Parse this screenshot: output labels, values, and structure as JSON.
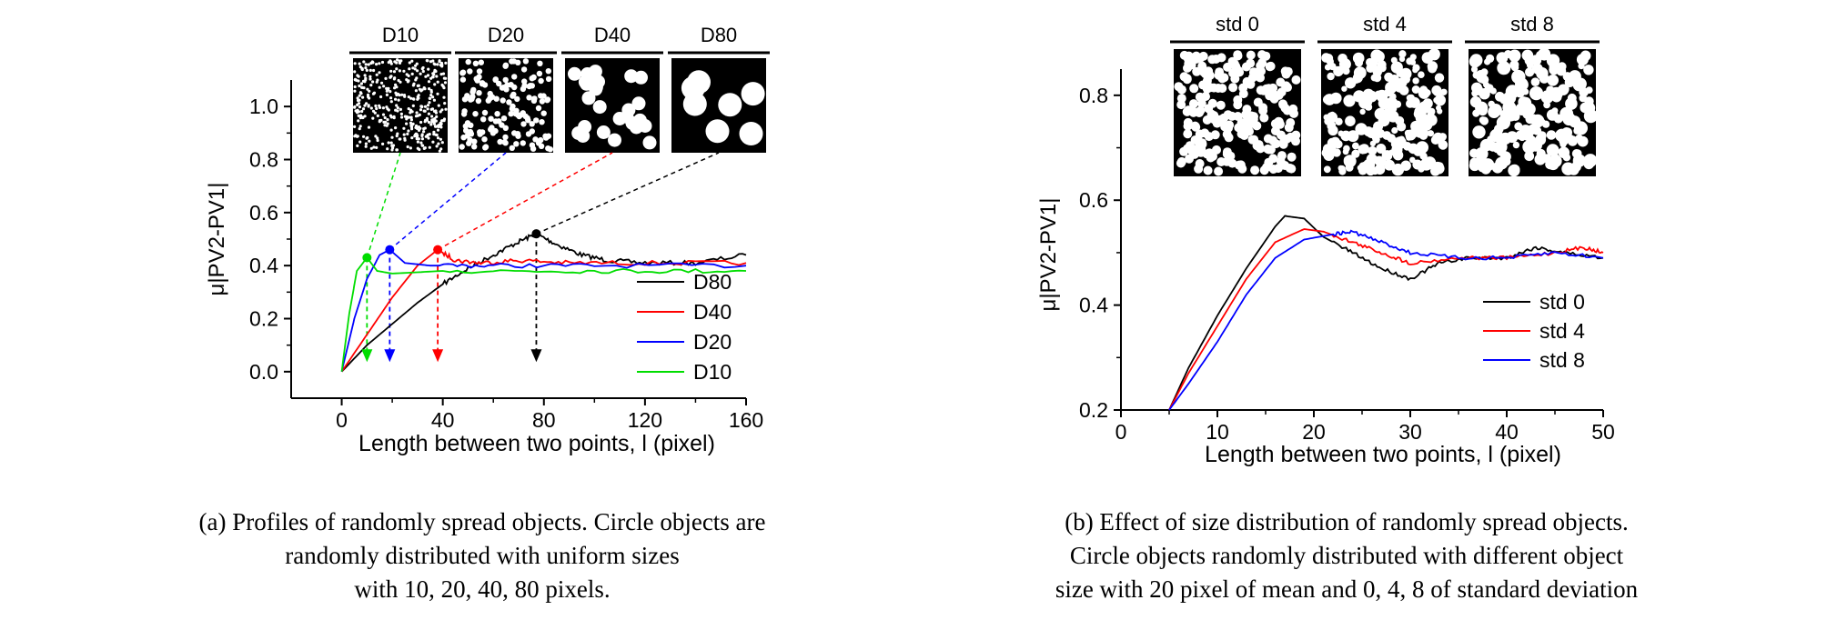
{
  "chart_data": [
    {
      "type": "line",
      "xlabel": "Length between two points, l (pixel)",
      "ylabel": "μ|PV2-PV1|",
      "xlim": [
        -20,
        160
      ],
      "ylim": [
        -0.1,
        1.1
      ],
      "xticks": [
        0,
        40,
        80,
        120,
        160
      ],
      "yticks": [
        0.0,
        0.2,
        0.4,
        0.6,
        0.8,
        1.0
      ],
      "legend_position": "bottom-right",
      "inset_labels": [
        "D10",
        "D20",
        "D40",
        "D80"
      ],
      "series": [
        {
          "name": "D80",
          "color": "#000000",
          "x": [
            0,
            10,
            20,
            30,
            40,
            50,
            60,
            70,
            77,
            85,
            95,
            105,
            120,
            140,
            160
          ],
          "y": [
            0.0,
            0.1,
            0.18,
            0.26,
            0.33,
            0.39,
            0.44,
            0.49,
            0.52,
            0.48,
            0.44,
            0.42,
            0.41,
            0.41,
            0.44
          ],
          "peak": [
            77,
            0.52
          ]
        },
        {
          "name": "D40",
          "color": "#ff0000",
          "x": [
            0,
            10,
            20,
            30,
            38,
            45,
            55,
            70,
            90,
            120,
            160
          ],
          "y": [
            0.0,
            0.14,
            0.28,
            0.4,
            0.46,
            0.42,
            0.41,
            0.42,
            0.41,
            0.41,
            0.41
          ],
          "peak": [
            38,
            0.46
          ]
        },
        {
          "name": "D20",
          "color": "#0000ff",
          "x": [
            0,
            5,
            10,
            15,
            19,
            25,
            35,
            60,
            100,
            160
          ],
          "y": [
            0.0,
            0.2,
            0.35,
            0.44,
            0.46,
            0.41,
            0.4,
            0.4,
            0.4,
            0.4
          ],
          "peak": [
            19,
            0.46
          ]
        },
        {
          "name": "D10",
          "color": "#00dd00",
          "x": [
            0,
            3,
            6,
            10,
            14,
            20,
            40,
            80,
            120,
            160
          ],
          "y": [
            0.0,
            0.22,
            0.38,
            0.43,
            0.38,
            0.37,
            0.38,
            0.38,
            0.38,
            0.38
          ],
          "peak": [
            10,
            0.43
          ]
        }
      ]
    },
    {
      "type": "line",
      "xlabel": "Length between two points, l (pixel)",
      "ylabel": "μ|PV2-PV1|",
      "xlim": [
        0,
        50
      ],
      "ylim": [
        0.2,
        0.85
      ],
      "xticks": [
        0,
        10,
        20,
        30,
        40,
        50
      ],
      "yticks": [
        0.2,
        0.4,
        0.6,
        0.8
      ],
      "legend_position": "bottom-right",
      "inset_labels": [
        "std 0",
        "std 4",
        "std 8"
      ],
      "series": [
        {
          "name": "std 0",
          "color": "#000000",
          "x": [
            5,
            7,
            10,
            13,
            16,
            17,
            19,
            21,
            24,
            27,
            30,
            33,
            36,
            40,
            43,
            46,
            50
          ],
          "y": [
            0.2,
            0.28,
            0.38,
            0.47,
            0.55,
            0.57,
            0.565,
            0.53,
            0.5,
            0.47,
            0.45,
            0.48,
            0.49,
            0.49,
            0.51,
            0.5,
            0.49
          ],
          "peak": [
            17,
            0.57
          ]
        },
        {
          "name": "std 4",
          "color": "#ff0000",
          "x": [
            5,
            7,
            10,
            13,
            16,
            19,
            21,
            24,
            27,
            30,
            35,
            40,
            45,
            48,
            50
          ],
          "y": [
            0.2,
            0.27,
            0.36,
            0.45,
            0.52,
            0.545,
            0.54,
            0.52,
            0.5,
            0.48,
            0.49,
            0.49,
            0.5,
            0.51,
            0.5
          ],
          "peak": [
            19,
            0.545
          ]
        },
        {
          "name": "std 8",
          "color": "#0000ff",
          "x": [
            5,
            7,
            10,
            13,
            16,
            19,
            22,
            24,
            27,
            30,
            35,
            40,
            45,
            50
          ],
          "y": [
            0.2,
            0.25,
            0.33,
            0.42,
            0.49,
            0.525,
            0.535,
            0.54,
            0.52,
            0.5,
            0.49,
            0.49,
            0.5,
            0.49
          ]
        }
      ]
    }
  ],
  "captions": {
    "a": [
      "(a) Profiles of randomly spread objects. Circle objects are",
      "randomly distributed with uniform sizes",
      "with 10, 20, 40, 80 pixels."
    ],
    "b": [
      "(b) Effect of size distribution of randomly spread objects.",
      "Circle objects randomly distributed with different object",
      "size with 20 pixel of mean and 0, 4, 8 of standard deviation"
    ]
  }
}
